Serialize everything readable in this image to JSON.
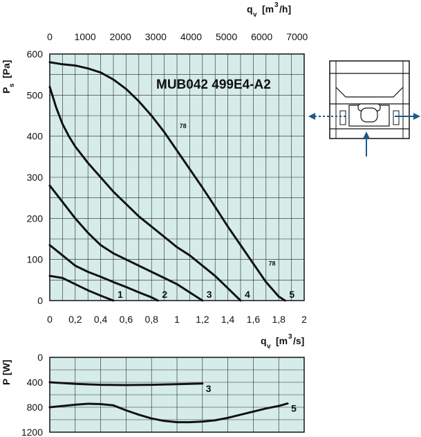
{
  "chart_data": [
    {
      "type": "line",
      "title": "MUB042 499E4-A2",
      "ylabel": "P",
      "ylabel_sub": "s",
      "ylabel_unit": "[Pa]",
      "xlabel": "q",
      "xlabel_sub": "v",
      "xlabel_unit_pre": "[m",
      "xlabel_unit_sup": "3",
      "xlabel_unit_post": "/s]",
      "top_xlabel": "q",
      "top_xlabel_sub": "v",
      "top_xlabel_unit_pre": "[m",
      "top_xlabel_unit_sup": "3",
      "top_xlabel_unit_post": "/h]",
      "xlim": [
        0,
        2
      ],
      "ylim": [
        0,
        600
      ],
      "top_xlim": [
        0,
        7200
      ],
      "x_ticks": [
        "0",
        "0,2",
        "0,4",
        "0,6",
        "0,8",
        "1",
        "1,2",
        "1,4",
        "1,6",
        "1,8",
        "2"
      ],
      "y_ticks": [
        "0",
        "100",
        "200",
        "300",
        "400",
        "500",
        "600"
      ],
      "top_x_ticks": [
        "0",
        "1000",
        "2000",
        "3000",
        "4000",
        "5000",
        "6000",
        "7000"
      ],
      "grid": true,
      "background": "#d6ece9",
      "line_color": "#111111",
      "annotations": [
        {
          "text": "78",
          "x": 1.02,
          "y": 420
        },
        {
          "text": "78",
          "x": 1.72,
          "y": 85
        }
      ],
      "series": [
        {
          "name": "1",
          "x": [
            0,
            0.1,
            0.2,
            0.3,
            0.4,
            0.5
          ],
          "y": [
            60,
            55,
            40,
            25,
            12,
            0
          ]
        },
        {
          "name": "2",
          "x": [
            0,
            0.1,
            0.2,
            0.3,
            0.4,
            0.5,
            0.6,
            0.7,
            0.8,
            0.85
          ],
          "y": [
            135,
            110,
            85,
            70,
            58,
            45,
            33,
            20,
            8,
            0
          ]
        },
        {
          "name": "3",
          "x": [
            0,
            0.1,
            0.2,
            0.3,
            0.4,
            0.5,
            0.6,
            0.7,
            0.8,
            0.9,
            1.0,
            1.1,
            1.2
          ],
          "y": [
            280,
            240,
            200,
            165,
            135,
            115,
            100,
            85,
            70,
            55,
            40,
            20,
            0
          ]
        },
        {
          "name": "4",
          "x": [
            0,
            0.05,
            0.1,
            0.15,
            0.2,
            0.3,
            0.4,
            0.5,
            0.6,
            0.7,
            0.8,
            0.9,
            1.0,
            1.1,
            1.2,
            1.3,
            1.4,
            1.5
          ],
          "y": [
            520,
            470,
            430,
            400,
            375,
            335,
            300,
            265,
            235,
            205,
            180,
            155,
            130,
            110,
            85,
            60,
            30,
            0
          ]
        },
        {
          "name": "5",
          "x": [
            0,
            0.1,
            0.2,
            0.3,
            0.4,
            0.5,
            0.6,
            0.7,
            0.8,
            0.9,
            1.0,
            1.1,
            1.2,
            1.3,
            1.4,
            1.5,
            1.6,
            1.7,
            1.8,
            1.85
          ],
          "y": [
            580,
            575,
            572,
            565,
            555,
            538,
            515,
            485,
            450,
            410,
            365,
            320,
            275,
            228,
            180,
            135,
            90,
            45,
            10,
            0
          ]
        }
      ]
    },
    {
      "type": "line",
      "ylabel": "P",
      "ylabel_unit": "[W]",
      "xlim": [
        0,
        2
      ],
      "ylim": [
        0,
        1200
      ],
      "y_inverted": true,
      "y_ticks": [
        "0",
        "400",
        "800",
        "1200"
      ],
      "grid": true,
      "background": "#d6ece9",
      "line_color": "#111111",
      "series": [
        {
          "name": "3",
          "x": [
            0,
            0.2,
            0.4,
            0.6,
            0.8,
            1.0,
            1.2
          ],
          "y": [
            400,
            425,
            440,
            445,
            440,
            430,
            420
          ]
        },
        {
          "name": "5",
          "x": [
            0,
            0.1,
            0.2,
            0.3,
            0.4,
            0.5,
            0.6,
            0.7,
            0.8,
            0.9,
            1.0,
            1.1,
            1.2,
            1.3,
            1.4,
            1.5,
            1.6,
            1.7,
            1.8,
            1.87
          ],
          "y": [
            800,
            780,
            760,
            745,
            750,
            770,
            850,
            920,
            980,
            1020,
            1040,
            1040,
            1030,
            1010,
            970,
            920,
            870,
            820,
            780,
            740
          ]
        }
      ]
    }
  ],
  "inset": {
    "arrow_color": "#1a5a8a",
    "icon": "fan-housing-airflow-icon"
  }
}
